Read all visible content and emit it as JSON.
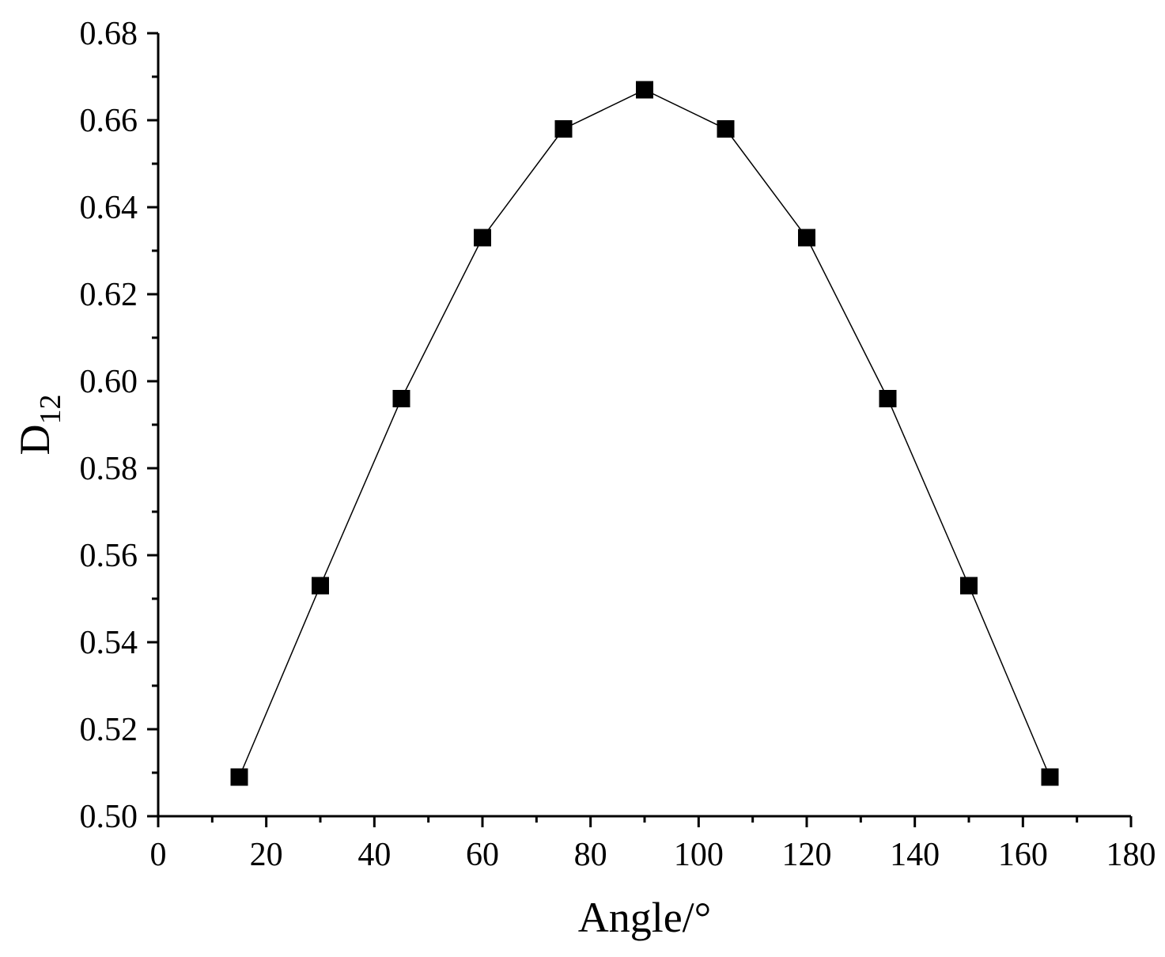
{
  "chart_data": {
    "type": "line",
    "title": "",
    "xlabel": "Angle/°",
    "ylabel_main": "D",
    "ylabel_sub": "12",
    "xlim": [
      0,
      180
    ],
    "ylim": [
      0.5,
      0.68
    ],
    "x_ticks": [
      0,
      20,
      40,
      60,
      80,
      100,
      120,
      140,
      160,
      180
    ],
    "x_tick_labels": [
      "0",
      "20",
      "40",
      "60",
      "80",
      "100",
      "120",
      "140",
      "160",
      "180"
    ],
    "x_minor_step": 10,
    "y_ticks": [
      0.5,
      0.52,
      0.54,
      0.56,
      0.58,
      0.6,
      0.62,
      0.64,
      0.66,
      0.68
    ],
    "y_tick_labels": [
      "0.50",
      "0.52",
      "0.54",
      "0.56",
      "0.58",
      "0.60",
      "0.62",
      "0.64",
      "0.66",
      "0.68"
    ],
    "y_minor_step": 0.01,
    "grid": false,
    "legend": "none",
    "marker": "square",
    "color": "#000000",
    "series": [
      {
        "x": [
          15,
          30,
          45,
          60,
          75,
          90,
          105,
          120,
          135,
          150,
          165
        ],
        "y": [
          0.509,
          0.553,
          0.596,
          0.633,
          0.658,
          0.667,
          0.658,
          0.633,
          0.596,
          0.553,
          0.509
        ]
      }
    ]
  }
}
